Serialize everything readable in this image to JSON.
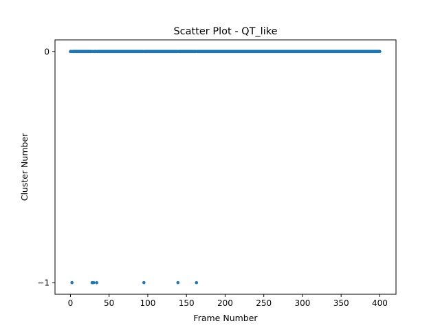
{
  "chart_data": {
    "type": "scatter",
    "title": "Scatter Plot - QT_like",
    "xlabel": "Frame Number",
    "ylabel": "Cluster Number",
    "xlim": [
      -19.95,
      420.95
    ],
    "ylim": [
      -1.05,
      0.05
    ],
    "x_ticks": [
      0,
      50,
      100,
      150,
      200,
      250,
      300,
      350,
      400
    ],
    "x_tick_labels": [
      "0",
      "50",
      "100",
      "150",
      "200",
      "250",
      "300",
      "350",
      "400"
    ],
    "y_ticks": [
      -1,
      0
    ],
    "y_tick_labels": [
      "−1",
      "0"
    ],
    "grid": false,
    "marker_color": "#1f77b4",
    "series": [
      {
        "x_range": [
          0,
          400
        ],
        "y": 0,
        "exclude_x": [
          2,
          28,
          30,
          34,
          95,
          139,
          163
        ]
      },
      {
        "x": [
          2,
          28,
          30,
          34,
          95,
          139,
          163
        ],
        "y": -1
      }
    ]
  }
}
